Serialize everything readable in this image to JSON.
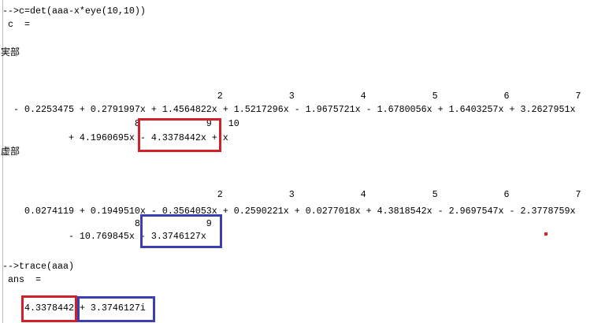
{
  "console": {
    "lines": [
      "-->c=det(aaa-x*eye(10,10))",
      " c  =",
      "実部",
      "                                       2            3            4            5            6            7",
      "  - 0.2253475 + 0.2791997x + 1.4564822x + 1.5217296x - 1.9675721x - 1.6780056x + 1.6403257x + 3.2627951x",
      "                        8            9   10",
      "            + 4.1960695x - 4.3378442x + x",
      "虚部",
      "                                       2            3            4            5            6            7",
      "    0.0274119 + 0.1949510x - 0.3564053x + 0.2590221x + 0.0277018x + 4.3818542x - 2.9697547x - 2.3778759x",
      "                        8            9",
      "            - 10.769845x - 3.3746127x",
      "-->trace(aaa)",
      " ans  =",
      "    4.3378442 + 3.3746127i"
    ]
  }
}
